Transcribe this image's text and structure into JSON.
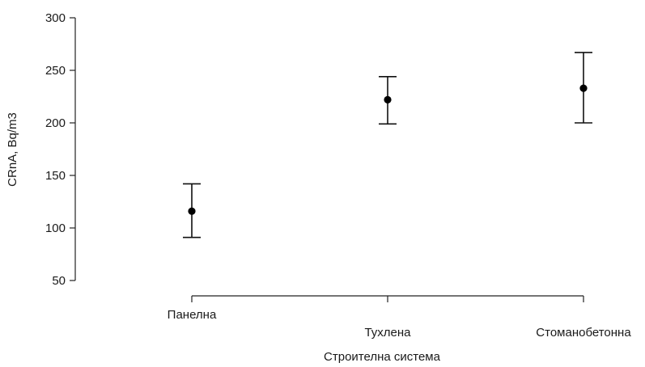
{
  "chart_data": {
    "type": "scatter",
    "title": "",
    "xlabel": "Строителна система",
    "ylabel": "CRnA, Bq/m3",
    "ylim": [
      50,
      300
    ],
    "yticks": [
      50,
      100,
      150,
      200,
      250,
      300
    ],
    "grid": false,
    "categories": [
      "Панелна",
      "Тухлена",
      "Стоманобетонна"
    ],
    "points": [
      {
        "category": "Панелна",
        "mean": 116,
        "lower": 91,
        "upper": 142
      },
      {
        "category": "Тухлена",
        "mean": 222,
        "lower": 199,
        "upper": 244
      },
      {
        "category": "Стоманобетонна",
        "mean": 233,
        "lower": 200,
        "upper": 267
      }
    ]
  },
  "colors": {
    "axis": "#222222",
    "marker": "#000000",
    "text": "#1a1a1a",
    "background": "#ffffff"
  }
}
